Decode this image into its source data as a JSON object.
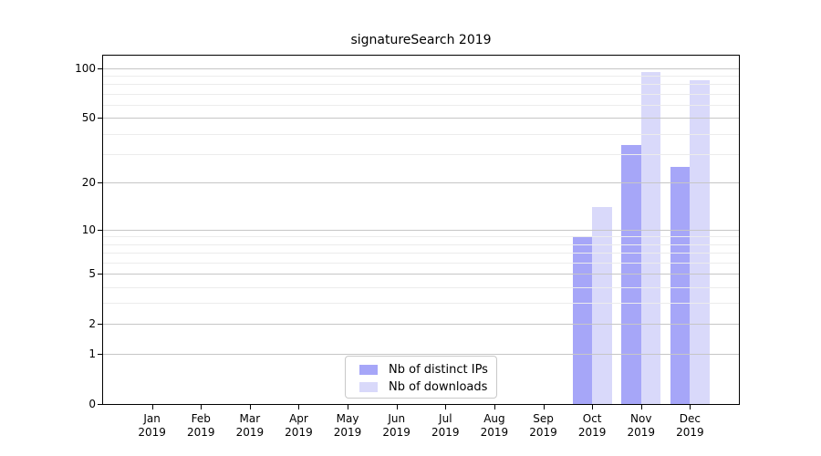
{
  "title": "signatureSearch 2019",
  "chart_data": {
    "type": "bar",
    "title": "signatureSearch 2019",
    "scale": "log1p",
    "grid": true,
    "legend_position": "bottom-center",
    "categories": [
      "Jan",
      "Feb",
      "Mar",
      "Apr",
      "May",
      "Jun",
      "Jul",
      "Aug",
      "Sep",
      "Oct",
      "Nov",
      "Dec"
    ],
    "year": "2019",
    "series": [
      {
        "name": "Nb of distinct IPs",
        "color": "#a6a6f8",
        "values": [
          0,
          0,
          0,
          0,
          0,
          0,
          0,
          0,
          0,
          9,
          34,
          25
        ]
      },
      {
        "name": "Nb of downloads",
        "color": "#d9d9fa",
        "values": [
          0,
          0,
          0,
          0,
          0,
          0,
          0,
          0,
          0,
          14,
          95,
          85
        ]
      }
    ],
    "yticks": [
      0,
      1,
      2,
      5,
      10,
      20,
      50,
      100
    ],
    "minor_gridlines": [
      3,
      4,
      6,
      7,
      8,
      9,
      30,
      40,
      60,
      70,
      80,
      90
    ],
    "ylim": [
      0,
      119
    ],
    "xlabel": "",
    "ylabel": ""
  },
  "colors": {
    "frame": "#000000",
    "grid_major": "#c6c6c6",
    "grid_minor": "#ececec",
    "background": "#ffffff"
  }
}
